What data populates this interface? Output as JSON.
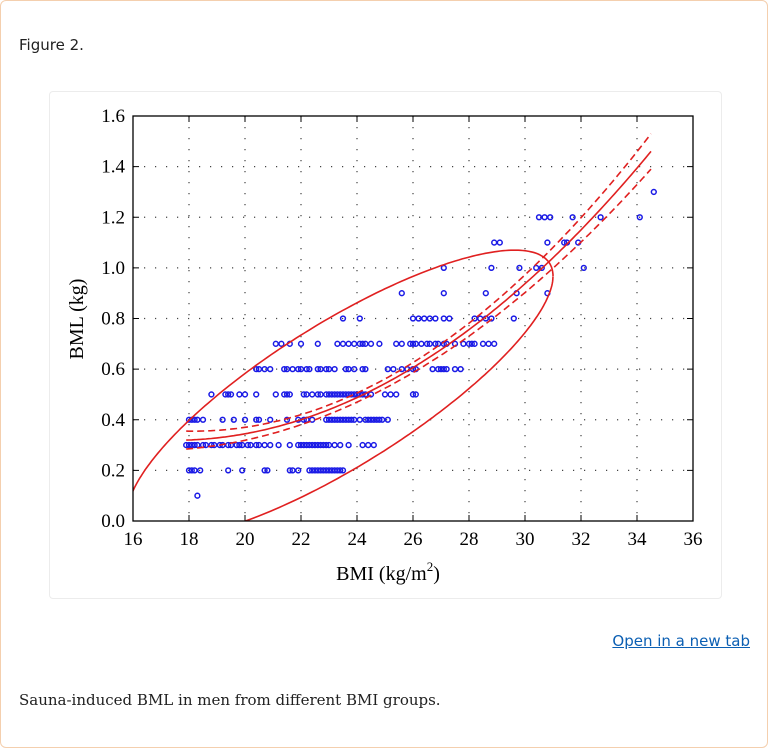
{
  "figure_label": "Figure 2.",
  "open_link": "Open in a new tab",
  "caption": "Sauna-induced BML in men from different BMI groups.",
  "colors": {
    "points": "#1a1ae6",
    "fit": "#e02020",
    "border": "#f4cfae",
    "link": "#0b5fb3"
  },
  "chart_data": {
    "type": "scatter",
    "title": "",
    "xlabel": "BMI (kg/m",
    "xlabel_sup": "2",
    "xlabel_end": ")",
    "ylabel": "BML (kg)",
    "xlim": [
      16,
      36
    ],
    "ylim": [
      0,
      1.6
    ],
    "xticks": [
      "16",
      "18",
      "20",
      "22",
      "24",
      "26",
      "28",
      "30",
      "32",
      "34",
      "36"
    ],
    "yticks": [
      "0.0",
      "0.2",
      "0.4",
      "0.6",
      "0.8",
      "1.0",
      "1.2",
      "1.4",
      "1.6"
    ],
    "grid": true,
    "marker": "open-circle",
    "rows": [
      {
        "y": 0.1,
        "x": [
          18.3
        ]
      },
      {
        "y": 0.2,
        "x": [
          18.0,
          18.1,
          18.2,
          18.4,
          19.4,
          19.9,
          20.7,
          20.8,
          21.6,
          21.7,
          21.9,
          22.3,
          22.4,
          22.5,
          22.6,
          22.7,
          22.8,
          22.9,
          23.0,
          23.1,
          23.2,
          23.3,
          23.4,
          23.5
        ]
      },
      {
        "y": 0.3,
        "x": [
          17.9,
          18.0,
          18.1,
          18.2,
          18.3,
          18.5,
          18.6,
          18.8,
          18.9,
          19.1,
          19.2,
          19.4,
          19.5,
          19.7,
          19.8,
          19.9,
          20.1,
          20.2,
          20.4,
          20.5,
          20.7,
          20.9,
          21.2,
          21.6,
          21.9,
          22.0,
          22.1,
          22.2,
          22.3,
          22.4,
          22.5,
          22.6,
          22.7,
          22.8,
          22.9,
          23.0,
          23.2,
          23.4,
          23.7,
          24.2,
          24.4,
          24.6
        ]
      },
      {
        "y": 0.4,
        "x": [
          18.0,
          18.1,
          18.2,
          18.3,
          18.5,
          19.2,
          19.6,
          20.0,
          20.4,
          20.5,
          20.9,
          21.5,
          21.9,
          22.1,
          22.2,
          22.4,
          22.9,
          23.0,
          23.1,
          23.2,
          23.3,
          23.4,
          23.5,
          23.6,
          23.7,
          23.8,
          23.9,
          24.1,
          24.3,
          24.4,
          24.5,
          24.6,
          24.7,
          24.8,
          24.9,
          25.1
        ]
      },
      {
        "y": 0.5,
        "x": [
          18.8,
          19.3,
          19.4,
          19.5,
          19.8,
          20.0,
          20.4,
          21.1,
          21.4,
          21.5,
          21.6,
          22.1,
          22.2,
          22.4,
          22.6,
          22.7,
          22.9,
          23.0,
          23.1,
          23.2,
          23.3,
          23.4,
          23.5,
          23.6,
          23.7,
          23.8,
          23.9,
          24.0,
          24.1,
          24.2,
          24.3,
          24.5,
          25.0,
          25.2,
          25.4,
          26.0,
          26.1
        ]
      },
      {
        "y": 0.6,
        "x": [
          20.4,
          20.5,
          20.7,
          20.9,
          21.4,
          21.5,
          21.7,
          21.9,
          22.0,
          22.2,
          22.3,
          22.6,
          22.7,
          22.9,
          23.0,
          23.2,
          23.6,
          23.7,
          23.9,
          24.2,
          24.3,
          25.1,
          25.3,
          25.6,
          25.8,
          26.0,
          26.1,
          26.7,
          26.9,
          27.0,
          27.1,
          27.2,
          27.5,
          27.7
        ]
      },
      {
        "y": 0.7,
        "x": [
          21.1,
          21.3,
          21.6,
          22.0,
          22.6,
          23.3,
          23.5,
          23.7,
          23.9,
          24.1,
          24.2,
          24.3,
          24.5,
          24.8,
          25.4,
          25.6,
          25.9,
          26.0,
          26.1,
          26.3,
          26.5,
          26.6,
          26.8,
          26.9,
          27.1,
          27.2,
          27.5,
          27.8,
          28.0,
          28.1,
          28.2,
          28.5,
          28.7,
          28.9
        ]
      },
      {
        "y": 0.8,
        "x": [
          23.5,
          24.1,
          26.0,
          26.2,
          26.4,
          26.6,
          26.8,
          27.1,
          27.3,
          28.2,
          28.4,
          28.6,
          28.8,
          29.6
        ]
      },
      {
        "y": 0.9,
        "x": [
          25.6,
          27.1,
          28.6,
          29.7,
          30.8
        ]
      },
      {
        "y": 1.0,
        "x": [
          27.1,
          28.8,
          29.8,
          30.4,
          30.6,
          32.1
        ]
      },
      {
        "y": 1.1,
        "x": [
          28.9,
          29.1,
          30.8,
          31.4,
          31.5,
          31.9
        ]
      },
      {
        "y": 1.2,
        "x": [
          30.5,
          30.7,
          30.9,
          31.7,
          32.7,
          34.1
        ]
      },
      {
        "y": 1.3,
        "x": [
          34.6
        ]
      }
    ],
    "fit": {
      "type": "quadratic",
      "x0": 18,
      "a": 0.32,
      "b": 0.00441,
      "c": 0.00392,
      "x_range": [
        17.9,
        34.5
      ]
    },
    "confidence_band": {
      "center_x": 24,
      "min_halfwidth": 0.018,
      "k": 0.00047
    },
    "ellipse": {
      "center": [
        23.4,
        0.5
      ],
      "sd_x": 7.6,
      "sd_y": 0.57,
      "rho": 0.82
    }
  }
}
